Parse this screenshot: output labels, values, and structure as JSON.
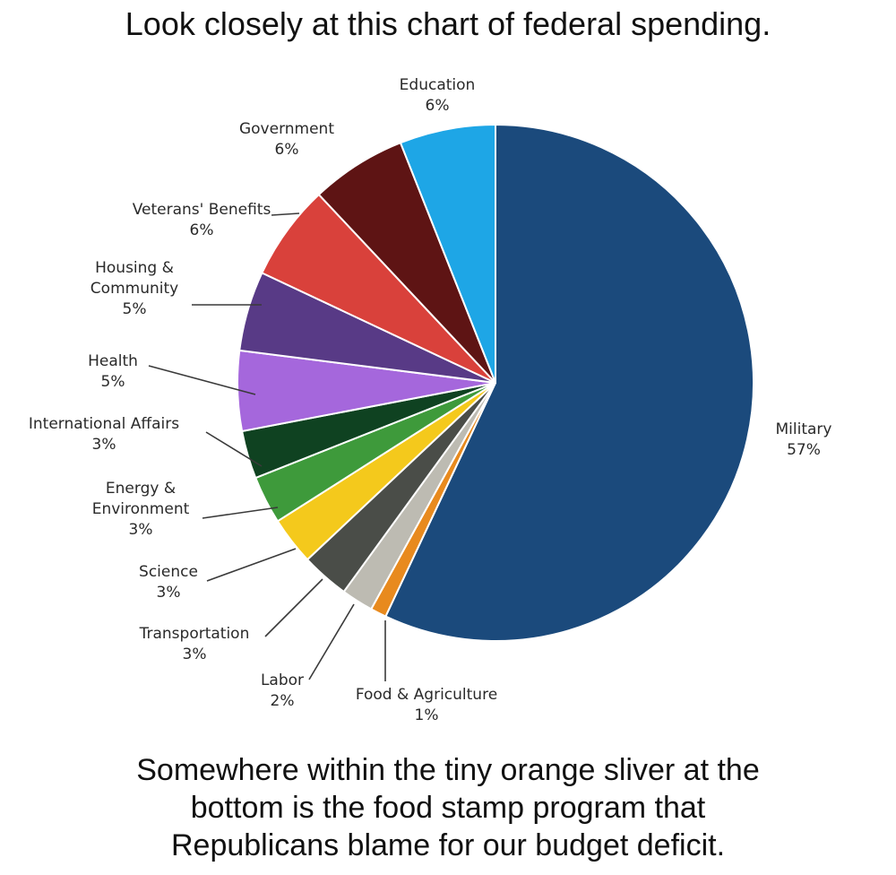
{
  "headline": "Look closely at this chart of federal spending.",
  "footer_lines": [
    "Somewhere within the tiny orange sliver at the",
    "bottom is the food stamp program that",
    "Republicans blame for our budget deficit."
  ],
  "chart_data": {
    "type": "pie",
    "title": "",
    "slices": [
      {
        "label": [
          "Military"
        ],
        "value": 57,
        "value_label": "57%",
        "color": "#1b4a7c"
      },
      {
        "label": [
          "Food & Agriculture"
        ],
        "value": 1,
        "value_label": "1%",
        "color": "#e88a1e"
      },
      {
        "label": [
          "Labor"
        ],
        "value": 2,
        "value_label": "2%",
        "color": "#bdbbb2"
      },
      {
        "label": [
          "Transportation"
        ],
        "value": 3,
        "value_label": "3%",
        "color": "#4a4d48"
      },
      {
        "label": [
          "Science"
        ],
        "value": 3,
        "value_label": "3%",
        "color": "#f4c91c"
      },
      {
        "label": [
          "Energy &",
          "Environment"
        ],
        "value": 3,
        "value_label": "3%",
        "color": "#3e9a3b"
      },
      {
        "label": [
          "International Affairs"
        ],
        "value": 3,
        "value_label": "3%",
        "color": "#0f4221"
      },
      {
        "label": [
          "Health"
        ],
        "value": 5,
        "value_label": "5%",
        "color": "#a567dc"
      },
      {
        "label": [
          "Housing &",
          "Community"
        ],
        "value": 5,
        "value_label": "5%",
        "color": "#583a86"
      },
      {
        "label": [
          "Veterans' Benefits"
        ],
        "value": 6,
        "value_label": "6%",
        "color": "#d9413b"
      },
      {
        "label": [
          "Government"
        ],
        "value": 6,
        "value_label": "6%",
        "color": "#5e1414"
      },
      {
        "label": [
          "Education"
        ],
        "value": 6,
        "value_label": "6%",
        "color": "#1ea6e6"
      }
    ]
  }
}
